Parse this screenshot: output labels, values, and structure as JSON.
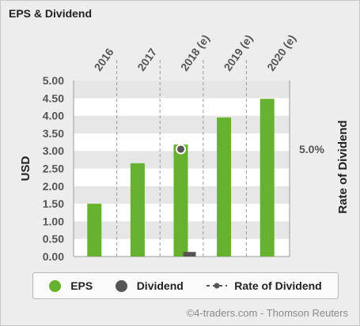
{
  "title": "EPS & Dividend",
  "credit": "©4-traders.com - Thomson Reuters",
  "colors": {
    "eps": "#66b22f",
    "dividend": "#555555",
    "rate": "#555555",
    "grid_dark": "#e6e6e6",
    "grid_light": "#ffffff"
  },
  "chart_data": {
    "type": "bar",
    "categories": [
      "2016",
      "2017",
      "2018 (e)",
      "2019 (e)",
      "2020 (e)"
    ],
    "series": [
      {
        "name": "EPS",
        "values": [
          1.5,
          2.65,
          3.18,
          3.95,
          4.48
        ]
      },
      {
        "name": "Dividend",
        "values": [
          null,
          null,
          0.13,
          null,
          null
        ]
      }
    ],
    "rate_series": {
      "name": "Rate of Dividend",
      "values": [
        null,
        null,
        5.0,
        null,
        null
      ],
      "unit": "%"
    },
    "ylabel": "USD",
    "y2label": "Rate of Dividend",
    "ylim": [
      0,
      5
    ],
    "yticks": [
      "0.00",
      "0.50",
      "1.00",
      "1.50",
      "2.00",
      "2.50",
      "3.00",
      "3.50",
      "4.00",
      "4.50",
      "5.00"
    ],
    "y2ticks": [
      "5.0%"
    ],
    "y2value": 5.0,
    "legend": [
      "EPS",
      "Dividend",
      "Rate of Dividend"
    ],
    "legend_position": "bottom"
  }
}
